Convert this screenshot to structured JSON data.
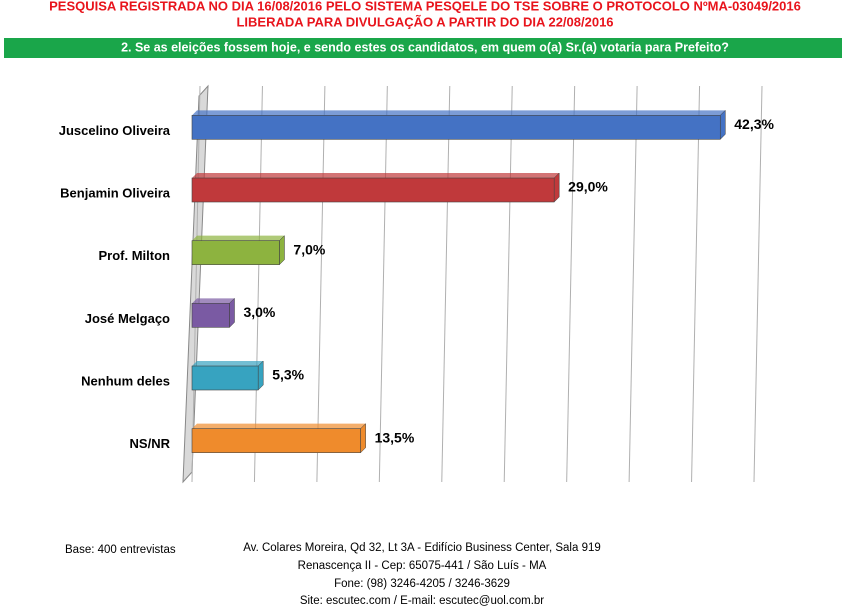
{
  "header": {
    "line1": "PESQUISA REGISTRADA NO DIA 16/08/2016 PELO SISTEMA PESQELE DO TSE SOBRE O PROTOCOLO NºMA-03049/2016",
    "line2": "LIBERADA PARA DIVULGAÇÃO A PARTIR DO DIA 22/08/2016"
  },
  "chart_data": {
    "type": "hbar",
    "title": "2. Se as eleições fossem hoje, e sendo estes os candidatos, em quem o(a) Sr.(a) votaria para Prefeito?",
    "categories": [
      "Juscelino Oliveira",
      "Benjamin Oliveira",
      "Prof. Milton",
      "José Melgaço",
      "Nenhum deles",
      "NS/NR"
    ],
    "values": [
      42.3,
      29.0,
      7.0,
      3.0,
      5.3,
      13.5
    ],
    "value_labels": [
      "42,3%",
      "29,0%",
      "7,0%",
      "3,0%",
      "5,3%",
      "13,5%"
    ],
    "colors": [
      "#4472c4",
      "#c0393b",
      "#8db33f",
      "#7a5aa3",
      "#37a3c0",
      "#ef8b2c"
    ],
    "xlim": [
      0,
      45
    ],
    "xticks": [
      0,
      5,
      10,
      15,
      20,
      25,
      30,
      35,
      40,
      45
    ],
    "grid": true
  },
  "footer": {
    "base": "Base: 400 entrevistas",
    "lines": [
      "Av. Colares Moreira, Qd 32, Lt 3A - Edifício Business Center, Sala 919",
      "Renascença II - Cep: 65075-441 / São Luís - MA",
      "Fone: (98) 3246-4205 / 3246-3629",
      "Site: escutec.com / E-mail: escutec@uol.com.br"
    ]
  }
}
